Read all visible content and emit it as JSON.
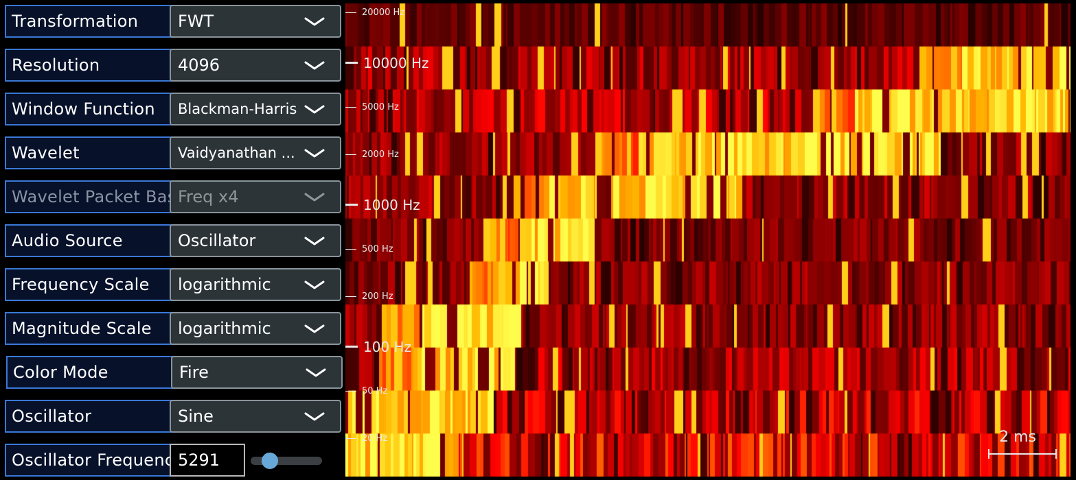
{
  "controls": [
    {
      "label": "Transformation",
      "value": "FWT",
      "enabled": true
    },
    {
      "label": "Resolution",
      "value": "4096",
      "enabled": true
    },
    {
      "label": "Window Function",
      "value": "Blackman-Harris",
      "enabled": true
    },
    {
      "label": "Wavelet",
      "value": "Vaidyanathan ...",
      "enabled": true
    },
    {
      "label": "Wavelet Packet Basis",
      "value": "Freq x4",
      "enabled": false
    },
    {
      "label": "Audio Source",
      "value": "Oscillator",
      "enabled": true
    },
    {
      "label": "Frequency Scale",
      "value": "logarithmic",
      "enabled": true
    },
    {
      "label": "Magnitude Scale",
      "value": "logarithmic",
      "enabled": true
    },
    {
      "label": "Color Mode",
      "value": "Fire",
      "enabled": true
    },
    {
      "label": "Oscillator",
      "value": "Sine",
      "enabled": true
    }
  ],
  "oscillator_frequency": {
    "label": "Oscillator Frequency",
    "value": "5291",
    "slider_fraction": 0.2
  },
  "spectrogram": {
    "frequency_labels": [
      {
        "text": "20000 Hz",
        "major": false
      },
      {
        "text": "10000 Hz",
        "major": true
      },
      {
        "text": "5000 Hz",
        "major": false
      },
      {
        "text": "2000 Hz",
        "major": false
      },
      {
        "text": "1000 Hz",
        "major": true
      },
      {
        "text": "500 Hz",
        "major": false
      },
      {
        "text": "200 Hz",
        "major": false
      },
      {
        "text": "100 Hz",
        "major": true
      },
      {
        "text": "50 Hz",
        "major": false
      },
      {
        "text": "20 Hz",
        "major": false
      }
    ],
    "scale_bar_label": "2 ms",
    "color_mode": "Fire"
  },
  "colors": {
    "label_border": "#3a78d6",
    "label_bg": "#07112a",
    "select_bg": "#2c3438",
    "slider_knob": "#67a8d9"
  }
}
